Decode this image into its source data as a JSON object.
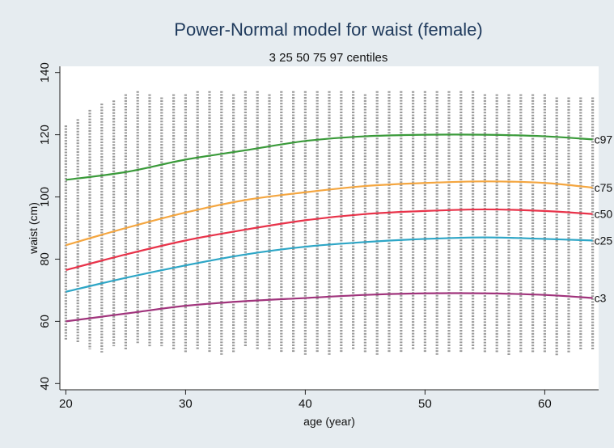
{
  "chart_data": {
    "type": "scatter",
    "title": "Power-Normal model for waist (female)",
    "subtitle": "3 25 50 75 97 centiles",
    "xlabel": "age (year)",
    "ylabel": "waist (cm)",
    "xlim": [
      19.5,
      64.5
    ],
    "ylim": [
      38,
      142
    ],
    "x_ticks": [
      20,
      30,
      40,
      50,
      60
    ],
    "y_ticks": [
      40,
      60,
      80,
      100,
      120,
      140
    ],
    "grid": false,
    "scatter_summary": {
      "ages": [
        20,
        21,
        22,
        23,
        24,
        25,
        26,
        27,
        28,
        29,
        30,
        31,
        32,
        33,
        34,
        35,
        36,
        37,
        38,
        39,
        40,
        41,
        42,
        43,
        44,
        45,
        46,
        47,
        48,
        49,
        50,
        51,
        52,
        53,
        54,
        55,
        56,
        57,
        58,
        59,
        60,
        61,
        62,
        63,
        64
      ],
      "min": [
        54,
        53,
        51,
        50,
        52,
        51,
        53,
        52,
        52,
        51,
        50,
        51,
        50,
        49,
        50,
        52,
        51,
        51,
        50,
        50,
        49,
        50,
        49,
        50,
        51,
        50,
        49,
        50,
        50,
        51,
        50,
        49,
        50,
        50,
        51,
        50,
        50,
        49,
        50,
        50,
        50,
        49,
        50,
        51,
        51
      ],
      "max": [
        123,
        125,
        128,
        130,
        131,
        133,
        134,
        133,
        132,
        133,
        133,
        134,
        134,
        134,
        133,
        134,
        134,
        133,
        134,
        134,
        134,
        134,
        134,
        134,
        134,
        133,
        134,
        134,
        134,
        134,
        134,
        134,
        134,
        134,
        134,
        133,
        133,
        133,
        133,
        133,
        133,
        132,
        132,
        132,
        132
      ]
    },
    "series": [
      {
        "name": "c97",
        "color": "#3a9a3a",
        "x": [
          20,
          25,
          30,
          35,
          40,
          45,
          50,
          55,
          60,
          64
        ],
        "y": [
          105.5,
          108,
          112,
          115,
          118,
          119.5,
          120,
          120,
          119.5,
          118.5
        ]
      },
      {
        "name": "c75",
        "color": "#f4a640",
        "x": [
          20,
          25,
          30,
          35,
          40,
          45,
          50,
          55,
          60,
          64
        ],
        "y": [
          84.5,
          90,
          95,
          99,
          101.5,
          103.5,
          104.5,
          105,
          104.5,
          103
        ]
      },
      {
        "name": "c50",
        "color": "#e8334a",
        "x": [
          20,
          25,
          30,
          35,
          40,
          45,
          50,
          55,
          60,
          64
        ],
        "y": [
          76.5,
          81.5,
          86,
          89.5,
          92.5,
          94.5,
          95.5,
          96,
          95.5,
          94.5
        ]
      },
      {
        "name": "c25",
        "color": "#2ea6c6",
        "x": [
          20,
          25,
          30,
          35,
          40,
          45,
          50,
          55,
          60,
          64
        ],
        "y": [
          69.5,
          74,
          78,
          81.5,
          84,
          85.5,
          86.5,
          87,
          86.5,
          86
        ]
      },
      {
        "name": "c3",
        "color": "#a0347c",
        "x": [
          20,
          25,
          30,
          35,
          40,
          45,
          50,
          55,
          60,
          64
        ],
        "y": [
          60,
          62.5,
          65,
          66.5,
          67.5,
          68.5,
          69,
          69,
          68.5,
          67.5
        ]
      }
    ]
  }
}
